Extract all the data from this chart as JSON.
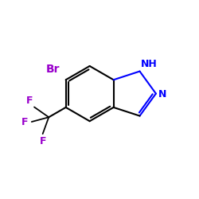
{
  "bg_color": "#ffffff",
  "bond_color": "#000000",
  "heteroatom_color": "#0000ff",
  "substituent_color": "#9900cc",
  "bond_width": 1.5,
  "figsize": [
    2.5,
    2.5
  ],
  "dpi": 100,
  "xlim": [
    0,
    10
  ],
  "ylim": [
    0,
    10
  ],
  "font_size": 9
}
